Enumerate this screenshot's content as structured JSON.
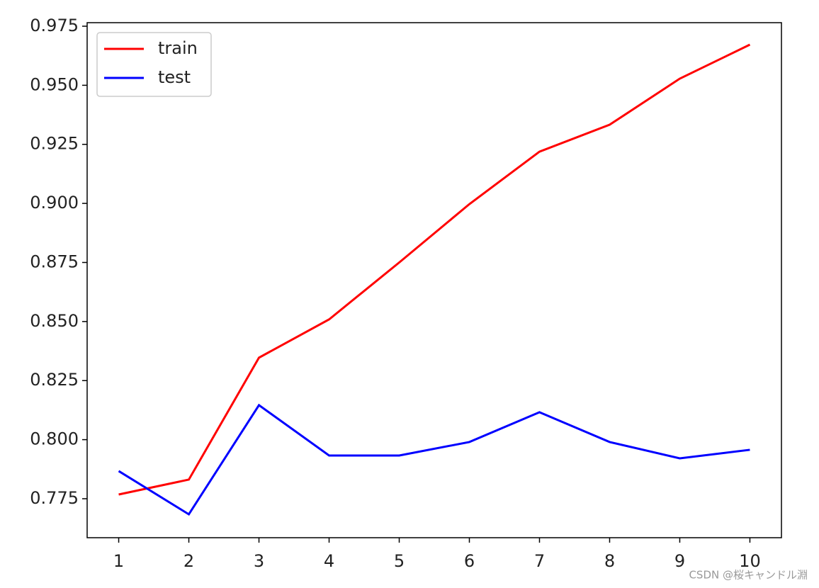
{
  "chart_data": {
    "type": "line",
    "x": [
      1,
      2,
      3,
      4,
      5,
      6,
      7,
      8,
      9,
      10
    ],
    "series": [
      {
        "name": "train",
        "color": "#ff0000",
        "values": [
          0.7768,
          0.7831,
          0.8347,
          0.8509,
          0.875,
          0.8997,
          0.9219,
          0.9333,
          0.9528,
          0.9672
        ]
      },
      {
        "name": "test",
        "color": "#0000ff",
        "values": [
          0.7867,
          0.7684,
          0.8146,
          0.7933,
          0.7933,
          0.799,
          0.8116,
          0.799,
          0.7921,
          0.7957
        ]
      }
    ],
    "xlim": [
      0.55,
      10.45
    ],
    "xticks": [
      1,
      2,
      3,
      4,
      5,
      6,
      7,
      8,
      9,
      10
    ],
    "ylim": [
      0.7585,
      0.9765
    ],
    "yticks": [
      0.775,
      {
        "value": 0.8,
        "label": "0.800"
      },
      0.825,
      {
        "value": 0.85,
        "label": "0.850"
      },
      0.875,
      {
        "value": 0.9,
        "label": "0.900"
      },
      0.925,
      {
        "value": 0.95,
        "label": "0.950"
      },
      0.975
    ],
    "legend": "upper left",
    "watermark": "CSDN @桜キャンドル淵"
  }
}
